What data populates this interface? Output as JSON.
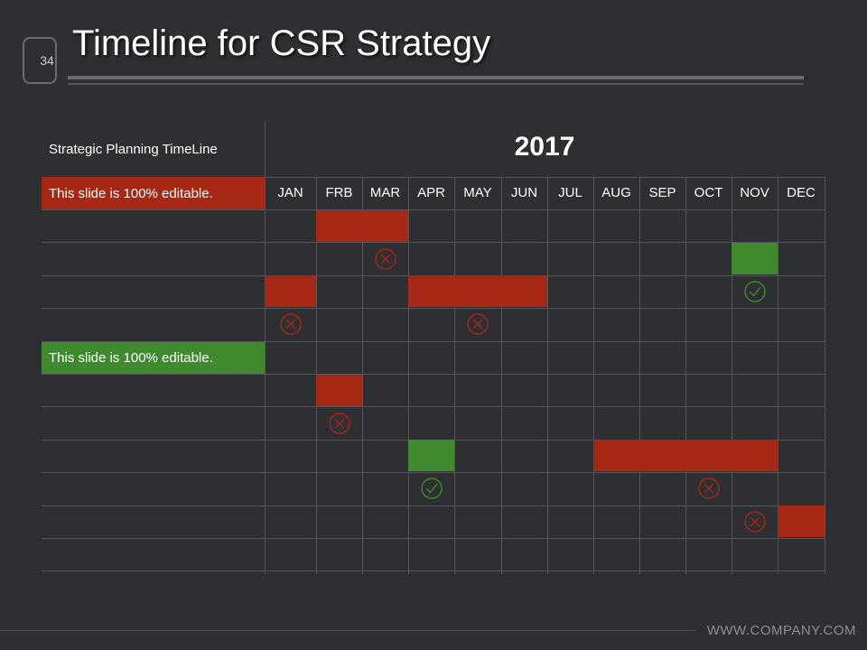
{
  "slide": {
    "number": "34",
    "title": "Timeline for CSR Strategy",
    "footer": "WWW.COMPANY.COM"
  },
  "timeline": {
    "planning_label": "Strategic Planning TimeLine",
    "year": "2017",
    "months": [
      "JAN",
      "FRB",
      "MAR",
      "APR",
      "MAY",
      "JUN",
      "JUL",
      "AUG",
      "SEP",
      "OCT",
      "NOV",
      "DEC"
    ],
    "section_labels": [
      {
        "text": "This slide is 100% editable.",
        "color": "#a52714"
      },
      {
        "text": "This slide is 100% editable.",
        "color": "#3f8a2e"
      }
    ],
    "bars": [
      {
        "row": 0,
        "start": 1,
        "end": 2,
        "color": "#a52714"
      },
      {
        "row": 1,
        "start": 10,
        "end": 10,
        "color": "#3f8a2e"
      },
      {
        "row": 2,
        "start": 0,
        "end": 0,
        "color": "#a52714"
      },
      {
        "row": 2,
        "start": 3,
        "end": 5,
        "color": "#a52714"
      },
      {
        "row": 5,
        "start": 1,
        "end": 1,
        "color": "#a52714"
      },
      {
        "row": 7,
        "start": 3,
        "end": 3,
        "color": "#3f8a2e"
      },
      {
        "row": 7,
        "start": 7,
        "end": 10,
        "color": "#a52714"
      },
      {
        "row": 9,
        "start": 11,
        "end": 11,
        "color": "#a52714"
      }
    ],
    "markers": [
      {
        "row": 1,
        "month": 2,
        "kind": "x"
      },
      {
        "row": 2,
        "month": 10,
        "kind": "check"
      },
      {
        "row": 3,
        "month": 0,
        "kind": "x"
      },
      {
        "row": 3,
        "month": 4,
        "kind": "x"
      },
      {
        "row": 6,
        "month": 1,
        "kind": "x"
      },
      {
        "row": 8,
        "month": 3,
        "kind": "check"
      },
      {
        "row": 8,
        "month": 9,
        "kind": "x"
      },
      {
        "row": 9,
        "month": 10,
        "kind": "x"
      }
    ],
    "colors": {
      "negative": "#a52714",
      "positive": "#3f8a2e",
      "grid": "#55565b",
      "background": "#2e2f33"
    }
  }
}
